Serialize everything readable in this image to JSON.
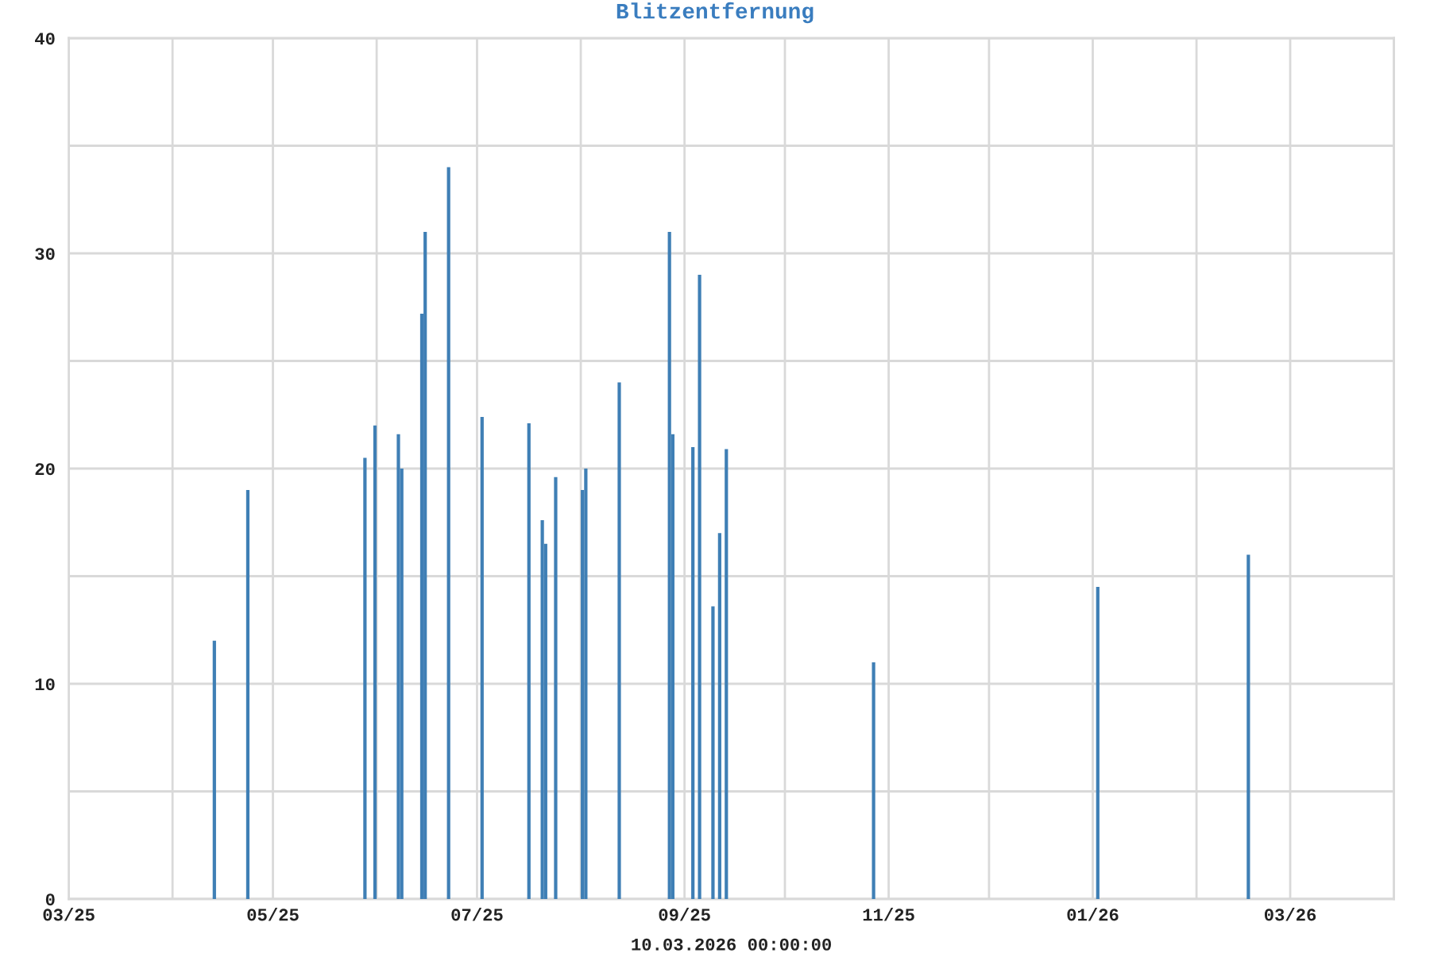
{
  "chart_data": {
    "type": "bar",
    "title": "Blitzentfernung",
    "xlabel": "10.03.2026 00:00:00",
    "x": [
      "2025-04-13",
      "2025-04-23",
      "2025-05-28",
      "2025-05-31",
      "2025-06-07",
      "2025-06-08",
      "2025-06-14",
      "2025-06-15",
      "2025-06-22",
      "2025-07-02",
      "2025-07-16",
      "2025-07-20",
      "2025-07-21",
      "2025-07-24",
      "2025-08-01",
      "2025-08-02",
      "2025-08-12",
      "2025-08-27",
      "2025-08-28",
      "2025-09-03",
      "2025-09-05",
      "2025-09-09",
      "2025-09-11",
      "2025-09-13",
      "2025-10-27",
      "2026-01-02",
      "2026-02-16"
    ],
    "values": [
      12,
      19,
      20.5,
      22,
      21.6,
      20,
      27.2,
      31,
      34,
      22.4,
      22.1,
      17.6,
      16.5,
      19.6,
      19,
      20,
      24,
      31,
      21.6,
      21,
      29,
      13.6,
      17,
      20.9,
      11,
      14.5,
      16
    ],
    "color": "#3f7fb5",
    "xlim": [
      "2025-03-01",
      "2026-04-01"
    ],
    "xticks": [
      {
        "value": "2025-03-01",
        "label": "03/25"
      },
      {
        "value": "2025-04-01",
        "label": null
      },
      {
        "value": "2025-05-01",
        "label": "05/25"
      },
      {
        "value": "2025-06-01",
        "label": null
      },
      {
        "value": "2025-07-01",
        "label": "07/25"
      },
      {
        "value": "2025-08-01",
        "label": null
      },
      {
        "value": "2025-09-01",
        "label": "09/25"
      },
      {
        "value": "2025-10-01",
        "label": null
      },
      {
        "value": "2025-11-01",
        "label": "11/25"
      },
      {
        "value": "2025-12-01",
        "label": null
      },
      {
        "value": "2026-01-01",
        "label": "01/26"
      },
      {
        "value": "2026-02-01",
        "label": null
      },
      {
        "value": "2026-03-01",
        "label": "03/26"
      },
      {
        "value": "2026-04-01",
        "label": null
      }
    ],
    "ylim": [
      0,
      40
    ],
    "yticks": [
      0,
      {
        "value": 5,
        "label": null
      },
      10,
      {
        "value": 15,
        "label": null
      },
      20,
      {
        "value": 25,
        "label": null
      },
      30,
      {
        "value": 35,
        "label": null
      },
      40
    ],
    "grid": true
  }
}
